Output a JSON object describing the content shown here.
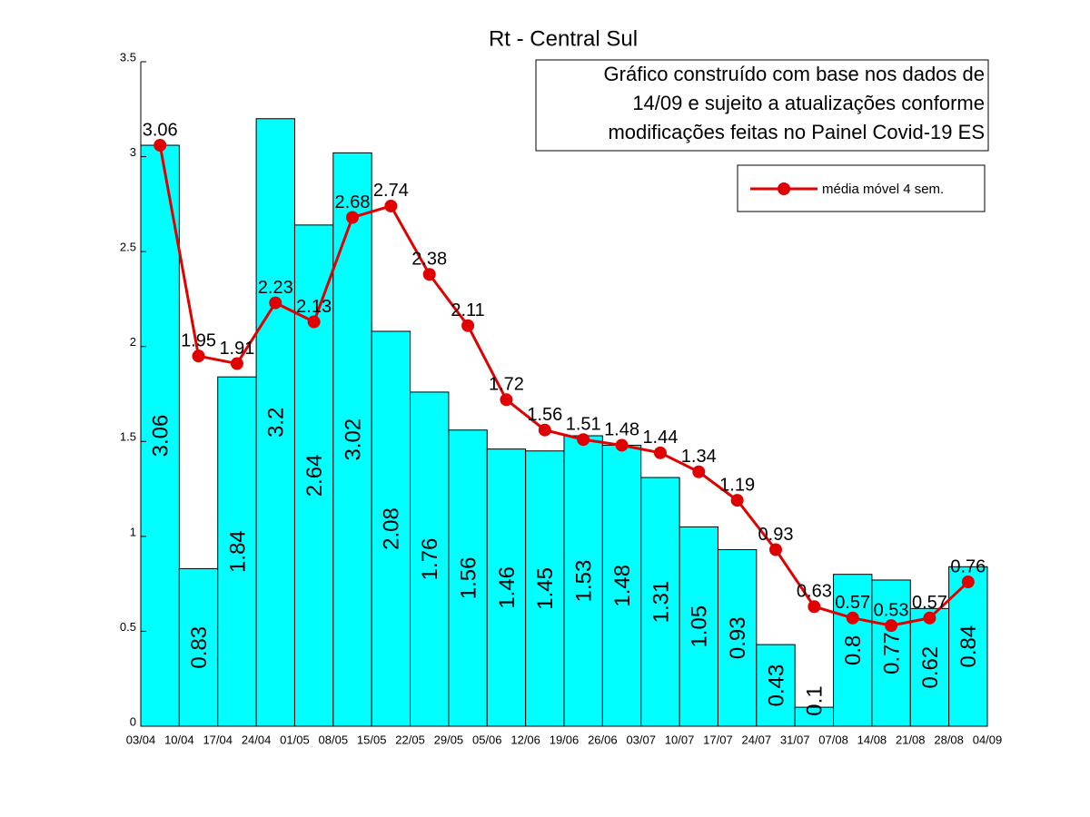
{
  "chart_data": {
    "type": "bar+line",
    "title": "Rt - Central Sul",
    "annotation": [
      "Gráfico construído com base nos dados de",
      "14/09 e sujeito a atualizações conforme",
      "modificações feitas no Painel Covid-19 ES"
    ],
    "x_edges": [
      "03/04",
      "10/04",
      "17/04",
      "24/04",
      "01/05",
      "08/05",
      "15/05",
      "22/05",
      "29/05",
      "05/06",
      "12/06",
      "19/06",
      "26/06",
      "03/07",
      "10/07",
      "17/07",
      "24/07",
      "31/07",
      "07/08",
      "14/08",
      "21/08",
      "28/08",
      "04/09"
    ],
    "bars": {
      "color": "#00ffff",
      "values": [
        3.06,
        0.83,
        1.84,
        3.2,
        2.64,
        3.02,
        2.08,
        1.76,
        1.56,
        1.46,
        1.45,
        1.53,
        1.48,
        1.31,
        1.05,
        0.93,
        0.43,
        0.1,
        0.8,
        0.77,
        0.62,
        0.84
      ]
    },
    "series": [
      {
        "name": "média móvel 4 sem.",
        "color": "#e00000",
        "values": [
          3.06,
          1.95,
          1.91,
          2.23,
          2.13,
          2.68,
          2.74,
          2.38,
          2.11,
          1.72,
          1.56,
          1.51,
          1.48,
          1.44,
          1.34,
          1.19,
          0.93,
          0.63,
          0.57,
          0.53,
          0.57,
          0.76
        ]
      }
    ],
    "ylim": [
      0,
      3.5
    ],
    "yticks": [
      0,
      0.5,
      1,
      1.5,
      2,
      2.5,
      3,
      3.5
    ],
    "legend": "upper right"
  }
}
